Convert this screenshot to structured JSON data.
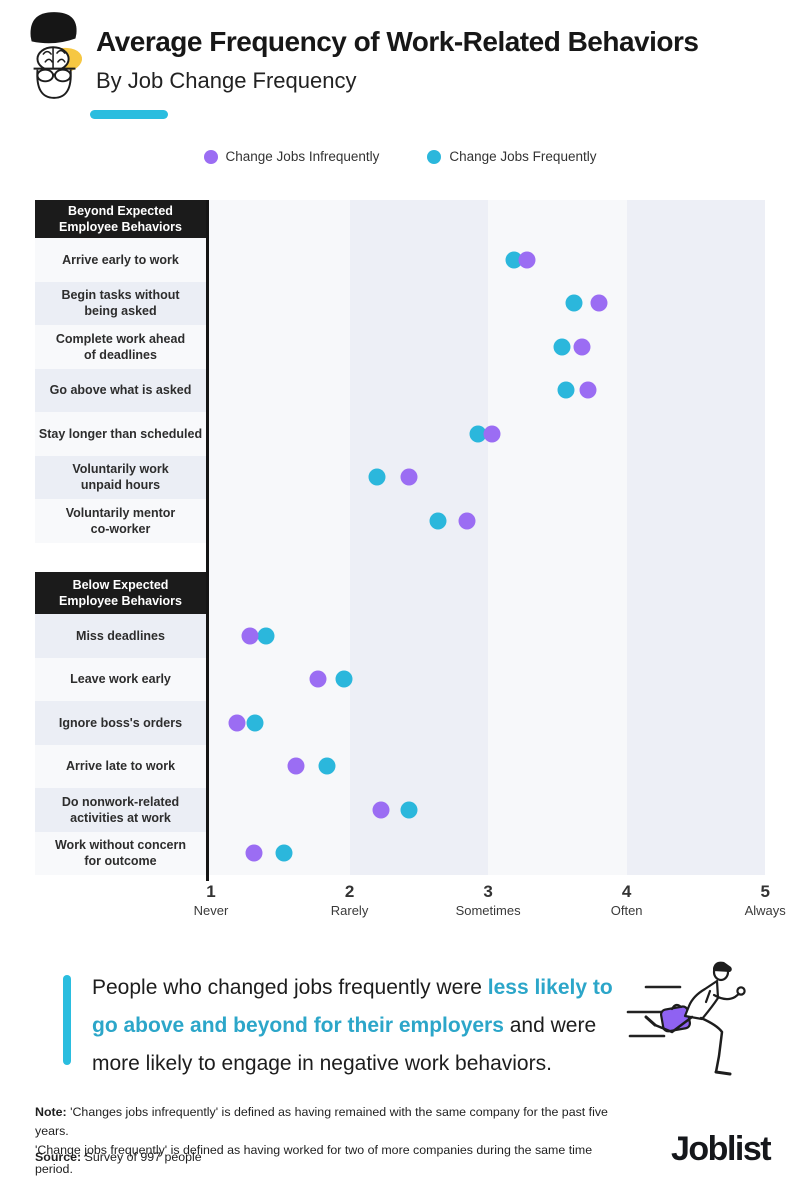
{
  "header": {
    "title": "Average Frequency of Work-Related Behaviors",
    "subtitle": "By Job Change Frequency"
  },
  "legend": [
    {
      "label": "Change Jobs Infrequently",
      "color": "#9b6df3",
      "key": "infrequently"
    },
    {
      "label": "Change Jobs Frequently",
      "color": "#2bb7dc",
      "key": "frequently"
    }
  ],
  "chart_data": {
    "type": "scatter",
    "title": "Average Frequency of Work-Related Behaviors",
    "subtitle": "By Job Change Frequency",
    "xlim": [
      1,
      5
    ],
    "grid": "alternating vertical bands between integer ticks",
    "legend_position": "top",
    "xlabel_ticks": [
      {
        "value": 1,
        "label": "Never"
      },
      {
        "value": 2,
        "label": "Rarely"
      },
      {
        "value": 3,
        "label": "Sometimes"
      },
      {
        "value": 4,
        "label": "Often"
      },
      {
        "value": 5,
        "label": "Always"
      }
    ],
    "series": [
      {
        "name": "Change Jobs Infrequently",
        "key": "infrequently",
        "color": "#9b6df3"
      },
      {
        "name": "Change Jobs Frequently",
        "key": "frequently",
        "color": "#2bb7dc"
      }
    ],
    "sections": [
      {
        "header": "Beyond Expected\nEmployee Behaviors",
        "rows": [
          {
            "label": "Arrive early to work",
            "infrequently": 3.28,
            "frequently": 3.19
          },
          {
            "label": "Begin tasks without\nbeing asked",
            "infrequently": 3.8,
            "frequently": 3.62
          },
          {
            "label": "Complete work ahead\nof deadlines",
            "infrequently": 3.68,
            "frequently": 3.53
          },
          {
            "label": "Go above what is asked",
            "infrequently": 3.72,
            "frequently": 3.56
          },
          {
            "label": "Stay longer than scheduled",
            "infrequently": 3.03,
            "frequently": 2.93
          },
          {
            "label": "Voluntarily work\nunpaid hours",
            "infrequently": 2.43,
            "frequently": 2.2
          },
          {
            "label": "Voluntarily mentor\nco-worker",
            "infrequently": 2.85,
            "frequently": 2.64
          }
        ]
      },
      {
        "header": "Below Expected\nEmployee Behaviors",
        "rows": [
          {
            "label": "Miss deadlines",
            "infrequently": 1.28,
            "frequently": 1.4
          },
          {
            "label": "Leave work early",
            "infrequently": 1.77,
            "frequently": 1.96
          },
          {
            "label": "Ignore boss's orders",
            "infrequently": 1.19,
            "frequently": 1.32
          },
          {
            "label": "Arrive late to work",
            "infrequently": 1.61,
            "frequently": 1.84
          },
          {
            "label": "Do nonwork-related\nactivities at work",
            "infrequently": 2.23,
            "frequently": 2.43
          },
          {
            "label": "Work without concern\nfor outcome",
            "infrequently": 1.31,
            "frequently": 1.53
          }
        ]
      }
    ]
  },
  "callout": {
    "text_before": "People who changed jobs frequently were ",
    "highlight": "less likely to go above and beyond for their employers",
    "text_after": " and were more likely to engage in negative work behaviors."
  },
  "footer": {
    "note_label": "Note:",
    "note_line1": " 'Changes jobs infrequently' is defined as having remained with the same company for the past five years.",
    "note_line2": "'Change jobs frequently' is defined as having worked for two of more companies during the same time period.",
    "source_label": "Source:",
    "source_text": " Survey of 997 people",
    "brand": "Joblist"
  },
  "colors": {
    "accent": "#2abddf",
    "purple": "#9b6df3",
    "cyan": "#2bb7dc",
    "band_light": "#f7f8fa",
    "band_dark": "#edeff6",
    "row_light": "#f8f9fb",
    "row_dark": "#ebeef5",
    "header_bg": "#1b1b1b",
    "highlight_text": "#2ca6c9",
    "briefcase": "#8f62f2"
  }
}
